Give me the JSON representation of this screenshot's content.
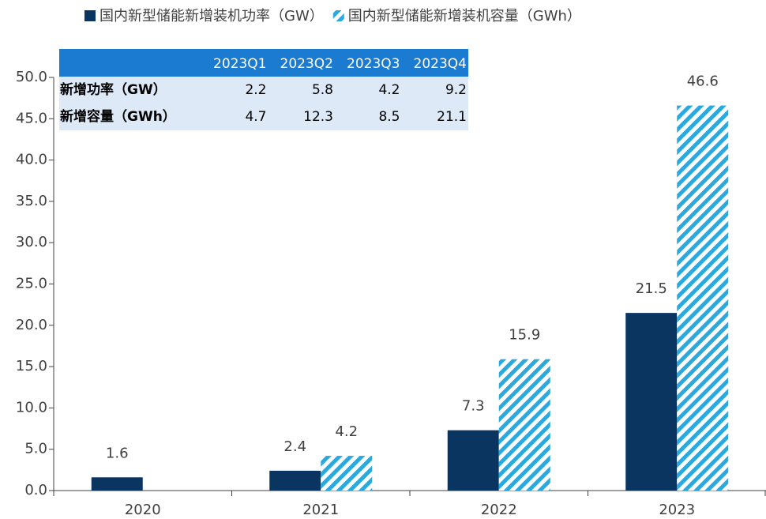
{
  "chart_data": {
    "type": "bar",
    "categories": [
      "2020",
      "2021",
      "2022",
      "2023"
    ],
    "series": [
      {
        "name": "国内新型储能新增装机功率（GW）",
        "color": "#0b3561",
        "values": [
          1.6,
          2.4,
          7.3,
          21.5
        ]
      },
      {
        "name": "国内新型储能新增装机容量（GWh）",
        "color": "#2aa9df",
        "hatch": true,
        "values": [
          null,
          4.2,
          15.9,
          46.6
        ]
      }
    ],
    "ylim": [
      0,
      50
    ],
    "yticks": [
      {
        "value": 0,
        "label": "0.0"
      },
      {
        "value": 5,
        "label": "5.0"
      },
      {
        "value": 10,
        "label": "10.0"
      },
      {
        "value": 15,
        "label": "15.0"
      },
      {
        "value": 20,
        "label": "20.0"
      },
      {
        "value": 25,
        "label": "25.0"
      },
      {
        "value": 30,
        "label": "30.0"
      },
      {
        "value": 35,
        "label": "35.0"
      },
      {
        "value": 40,
        "label": "40.0"
      },
      {
        "value": 45,
        "label": "45.0"
      },
      {
        "value": 50,
        "label": "50.0"
      }
    ],
    "grid": false,
    "legend": "top",
    "table": {
      "columns": [
        "2023Q1",
        "2023Q2",
        "2023Q3",
        "2023Q4"
      ],
      "rows": [
        {
          "label": "新增功率（GW）",
          "values": [
            2.2,
            5.8,
            4.2,
            9.2
          ]
        },
        {
          "label": "新增容量（GWh）",
          "values": [
            4.7,
            12.3,
            8.5,
            21.1
          ]
        }
      ]
    }
  }
}
